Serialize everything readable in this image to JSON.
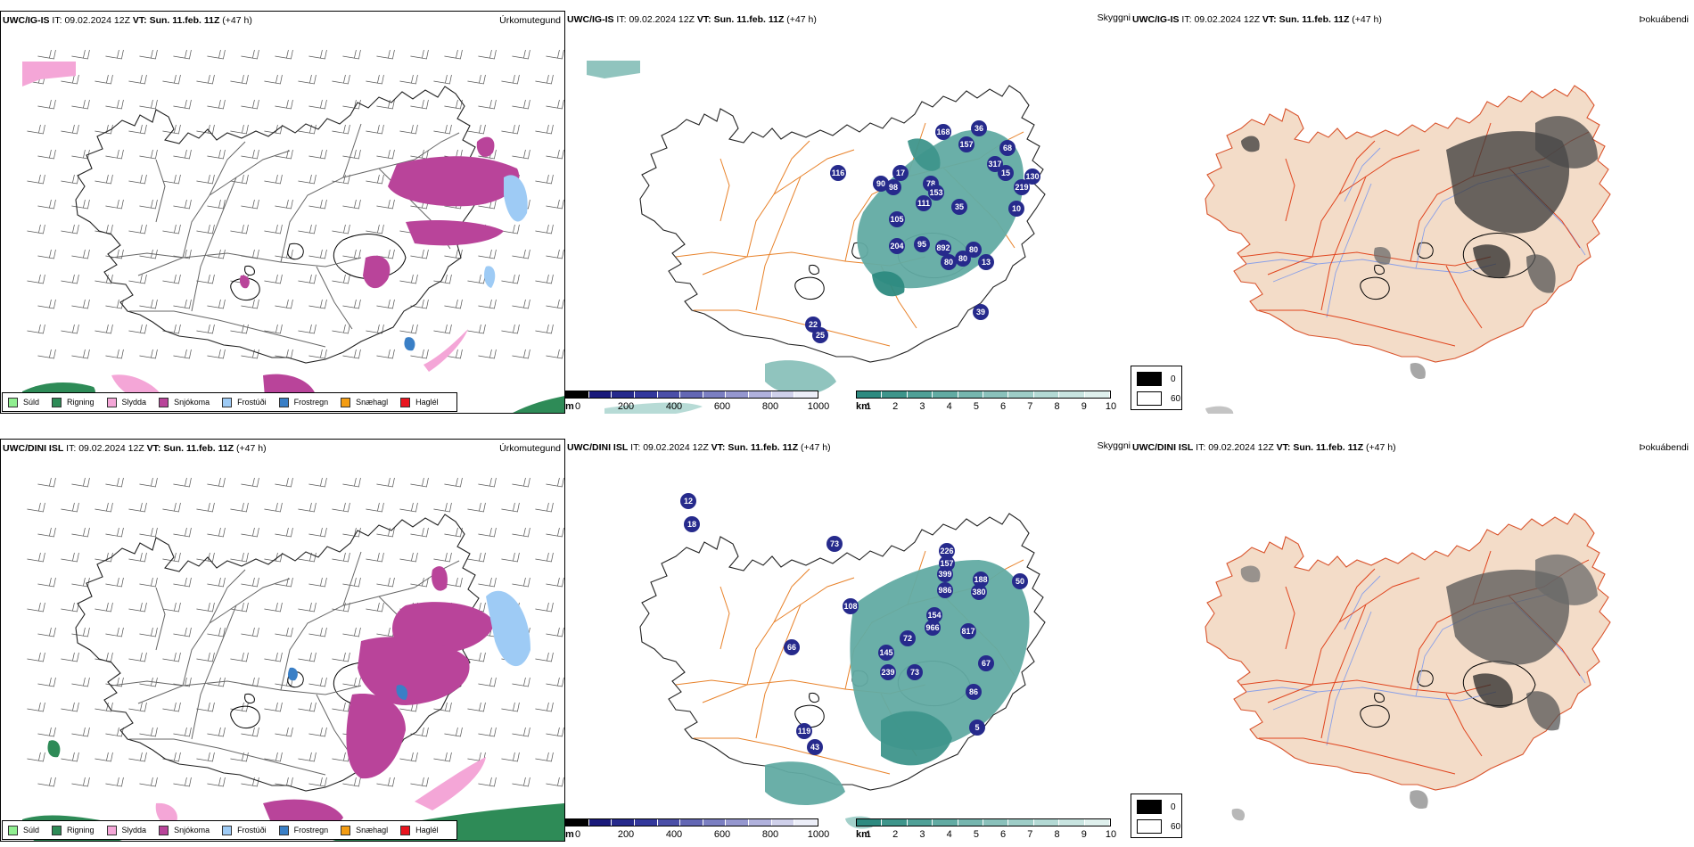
{
  "rows": [
    {
      "model": "UWC/IG-IS",
      "it_label": "IT:",
      "it_value": "09.02.2024 12Z",
      "vt_label": "VT:",
      "vt_value": "Sun. 11.feb. 11Z",
      "lead": "(+47 h)"
    },
    {
      "model": "UWC/DINI ISL",
      "it_label": "IT:",
      "it_value": "09.02.2024 12Z",
      "vt_label": "VT:",
      "vt_value": "Sun. 11.feb. 11Z",
      "lead": "(+47 h)"
    }
  ],
  "panel_titles": {
    "precip": "Úrkomutegund",
    "visibility": "Skyggni",
    "fog": "Þokuábendi"
  },
  "precip_legend": [
    {
      "label": "Súld",
      "color": "#90ee90"
    },
    {
      "label": "Rigning",
      "color": "#2e8b57"
    },
    {
      "label": "Slydda",
      "color": "#f4a6d7"
    },
    {
      "label": "Snjókoma",
      "color": "#b9449a"
    },
    {
      "label": "Frostúði",
      "color": "#9ecbf5"
    },
    {
      "label": "Frostregn",
      "color": "#3a7fc6"
    },
    {
      "label": "Snæhagl",
      "color": "#f39c12"
    },
    {
      "label": "Haglél",
      "color": "#e8141e"
    }
  ],
  "visibility_scale_m": {
    "unit": "m",
    "ticks": [
      "0",
      "200",
      "400",
      "600",
      "800",
      "1000"
    ],
    "colors": [
      "#000000",
      "#1a1a7a",
      "#262a8c",
      "#33389c",
      "#4b4fa8",
      "#6367b4",
      "#7b7fc2",
      "#9597cf",
      "#b0b1dc",
      "#cfd0ea",
      "#eceef8"
    ]
  },
  "visibility_scale_km": {
    "unit": "km",
    "ticks": [
      "1",
      "2",
      "3",
      "4",
      "5",
      "6",
      "7",
      "8",
      "9",
      "10"
    ],
    "colors": [
      "#2d8a80",
      "#3e958b",
      "#4fa097",
      "#62aba3",
      "#76b6af",
      "#8ac1bb",
      "#9ecdc7",
      "#b3d9d4",
      "#c8e4e0",
      "#dff0ed"
    ]
  },
  "fog_legend": [
    {
      "label": "0",
      "color": "#000000"
    },
    {
      "label": "60",
      "color": "#ffffff"
    }
  ],
  "visibility_labels": [
    [
      "168",
      "36",
      "157",
      "68",
      "116",
      "90",
      "98",
      "17",
      "78",
      "317",
      "219",
      "15",
      "130",
      "153",
      "111",
      "35",
      "10",
      "80",
      "80",
      "105",
      "204",
      "95",
      "892",
      "80",
      "13",
      "39",
      "22",
      "25"
    ],
    [
      "12",
      "18",
      "73",
      "226",
      "157",
      "399",
      "188",
      "986",
      "380",
      "50",
      "108",
      "154",
      "72",
      "966",
      "817",
      "145",
      "239",
      "73",
      "67",
      "86",
      "66",
      "119",
      "43",
      "5"
    ]
  ]
}
